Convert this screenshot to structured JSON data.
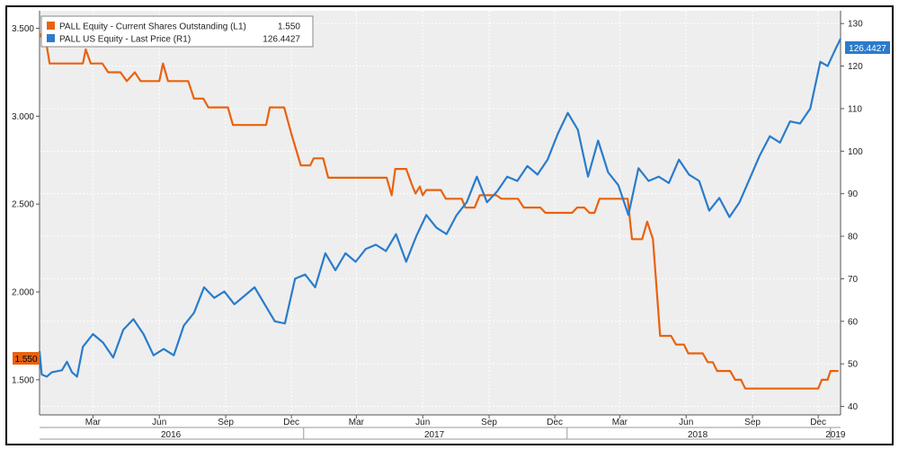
{
  "colors": {
    "orange": "#E8620F",
    "blue": "#2A7CCB",
    "plot_bg": "#EEEEEE",
    "grid": "#FFFFFF"
  },
  "legend": {
    "series1_label": "PALL Equity - Current Shares Outstanding (L1)",
    "series1_value": "1.550",
    "series2_label": "PALL US Equity - Last Price (R1)",
    "series2_value": "126.4427"
  },
  "badges": {
    "left": "1.550",
    "right": "126.4427"
  },
  "chart_data": {
    "type": "line",
    "grid": true,
    "legend_position": "top-left",
    "x_range": [
      "2016-01-01",
      "2019-01-15"
    ],
    "left_axis": {
      "range": [
        1.3,
        3.6
      ],
      "ticks": [
        "3.500",
        "3.000",
        "2.500",
        "2.000",
        "1.500"
      ],
      "tick_values": [
        3.5,
        3.0,
        2.5,
        2.0,
        1.5
      ]
    },
    "right_axis": {
      "range": [
        38,
        133
      ],
      "ticks": [
        "130",
        "120",
        "110",
        "100",
        "90",
        "80",
        "70",
        "60",
        "50",
        "40"
      ],
      "tick_values": [
        130,
        120,
        110,
        100,
        90,
        80,
        70,
        60,
        50,
        40
      ]
    },
    "x_ticks": [
      {
        "label": "Mar",
        "date": "2016-03-15"
      },
      {
        "label": "Jun",
        "date": "2016-06-15"
      },
      {
        "label": "Sep",
        "date": "2016-09-15"
      },
      {
        "label": "Dec",
        "date": "2016-12-15"
      },
      {
        "label": "Mar",
        "date": "2017-03-15"
      },
      {
        "label": "Jun",
        "date": "2017-06-15"
      },
      {
        "label": "Sep",
        "date": "2017-09-15"
      },
      {
        "label": "Dec",
        "date": "2017-12-15"
      },
      {
        "label": "Mar",
        "date": "2018-03-15"
      },
      {
        "label": "Jun",
        "date": "2018-06-15"
      },
      {
        "label": "Sep",
        "date": "2018-09-15"
      },
      {
        "label": "Dec",
        "date": "2018-12-15"
      }
    ],
    "year_labels": [
      {
        "label": "2016",
        "date": "2016-07-01"
      },
      {
        "label": "2017",
        "date": "2017-07-01"
      },
      {
        "label": "2018",
        "date": "2018-07-01"
      },
      {
        "label": "2019",
        "date": "2019-01-08"
      }
    ],
    "year_separators": [
      "2017-01-01",
      "2018-01-01",
      "2019-01-01"
    ],
    "series": [
      {
        "name": "PALL Equity - Current Shares Outstanding (L1)",
        "axis": "left",
        "color": "#E8620F",
        "points": [
          [
            "2016-01-01",
            3.47
          ],
          [
            "2016-01-11",
            3.4
          ],
          [
            "2016-01-15",
            3.3
          ],
          [
            "2016-03-01",
            3.3
          ],
          [
            "2016-03-05",
            3.38
          ],
          [
            "2016-03-12",
            3.3
          ],
          [
            "2016-03-28",
            3.3
          ],
          [
            "2016-04-05",
            3.25
          ],
          [
            "2016-04-22",
            3.25
          ],
          [
            "2016-05-01",
            3.2
          ],
          [
            "2016-05-12",
            3.25
          ],
          [
            "2016-05-20",
            3.2
          ],
          [
            "2016-06-15",
            3.2
          ],
          [
            "2016-06-20",
            3.3
          ],
          [
            "2016-06-27",
            3.2
          ],
          [
            "2016-07-25",
            3.2
          ],
          [
            "2016-08-02",
            3.1
          ],
          [
            "2016-08-15",
            3.1
          ],
          [
            "2016-08-22",
            3.05
          ],
          [
            "2016-09-18",
            3.05
          ],
          [
            "2016-09-25",
            2.95
          ],
          [
            "2016-11-10",
            2.95
          ],
          [
            "2016-11-15",
            3.05
          ],
          [
            "2016-12-05",
            3.05
          ],
          [
            "2016-12-15",
            2.9
          ],
          [
            "2016-12-28",
            2.72
          ],
          [
            "2017-01-10",
            2.72
          ],
          [
            "2017-01-15",
            2.76
          ],
          [
            "2017-01-28",
            2.76
          ],
          [
            "2017-02-04",
            2.65
          ],
          [
            "2017-04-26",
            2.65
          ],
          [
            "2017-05-03",
            2.55
          ],
          [
            "2017-05-08",
            2.7
          ],
          [
            "2017-05-23",
            2.7
          ],
          [
            "2017-06-01",
            2.6
          ],
          [
            "2017-06-05",
            2.56
          ],
          [
            "2017-06-11",
            2.6
          ],
          [
            "2017-06-15",
            2.55
          ],
          [
            "2017-06-20",
            2.58
          ],
          [
            "2017-07-10",
            2.58
          ],
          [
            "2017-07-17",
            2.53
          ],
          [
            "2017-08-08",
            2.53
          ],
          [
            "2017-08-13",
            2.48
          ],
          [
            "2017-08-26",
            2.48
          ],
          [
            "2017-09-02",
            2.55
          ],
          [
            "2017-09-25",
            2.55
          ],
          [
            "2017-10-02",
            2.53
          ],
          [
            "2017-10-25",
            2.53
          ],
          [
            "2017-11-02",
            2.48
          ],
          [
            "2017-11-25",
            2.48
          ],
          [
            "2017-12-02",
            2.45
          ],
          [
            "2018-01-08",
            2.45
          ],
          [
            "2018-01-15",
            2.48
          ],
          [
            "2018-01-25",
            2.48
          ],
          [
            "2018-02-01",
            2.45
          ],
          [
            "2018-02-08",
            2.45
          ],
          [
            "2018-02-15",
            2.53
          ],
          [
            "2018-03-26",
            2.53
          ],
          [
            "2018-04-01",
            2.3
          ],
          [
            "2018-04-15",
            2.3
          ],
          [
            "2018-04-22",
            2.4
          ],
          [
            "2018-04-30",
            2.3
          ],
          [
            "2018-05-10",
            1.75
          ],
          [
            "2018-05-25",
            1.75
          ],
          [
            "2018-06-01",
            1.7
          ],
          [
            "2018-06-12",
            1.7
          ],
          [
            "2018-06-18",
            1.65
          ],
          [
            "2018-07-08",
            1.65
          ],
          [
            "2018-07-15",
            1.6
          ],
          [
            "2018-07-22",
            1.6
          ],
          [
            "2018-07-28",
            1.55
          ],
          [
            "2018-08-15",
            1.55
          ],
          [
            "2018-08-22",
            1.5
          ],
          [
            "2018-08-30",
            1.5
          ],
          [
            "2018-09-05",
            1.45
          ],
          [
            "2018-12-15",
            1.45
          ],
          [
            "2018-12-20",
            1.5
          ],
          [
            "2018-12-28",
            1.5
          ],
          [
            "2019-01-01",
            1.55
          ],
          [
            "2019-01-12",
            1.55
          ]
        ]
      },
      {
        "name": "PALL US Equity - Last Price (R1)",
        "axis": "right",
        "color": "#2A7CCB",
        "points": [
          [
            "2016-01-01",
            53
          ],
          [
            "2016-01-04",
            47.5
          ],
          [
            "2016-01-11",
            47
          ],
          [
            "2016-01-18",
            48
          ],
          [
            "2016-02-01",
            48.5
          ],
          [
            "2016-02-08",
            50.5
          ],
          [
            "2016-02-15",
            48
          ],
          [
            "2016-02-22",
            47
          ],
          [
            "2016-03-01",
            54
          ],
          [
            "2016-03-15",
            57
          ],
          [
            "2016-03-29",
            55
          ],
          [
            "2016-04-12",
            51.5
          ],
          [
            "2016-04-26",
            58
          ],
          [
            "2016-05-10",
            60.5
          ],
          [
            "2016-05-24",
            57
          ],
          [
            "2016-06-07",
            52
          ],
          [
            "2016-06-21",
            53.5
          ],
          [
            "2016-07-05",
            52
          ],
          [
            "2016-07-19",
            59
          ],
          [
            "2016-08-02",
            62
          ],
          [
            "2016-08-16",
            68
          ],
          [
            "2016-08-30",
            65.5
          ],
          [
            "2016-09-13",
            67
          ],
          [
            "2016-09-27",
            64
          ],
          [
            "2016-10-11",
            66
          ],
          [
            "2016-10-25",
            68
          ],
          [
            "2016-11-08",
            64
          ],
          [
            "2016-11-22",
            60
          ],
          [
            "2016-12-06",
            59.5
          ],
          [
            "2016-12-20",
            70
          ],
          [
            "2017-01-03",
            71
          ],
          [
            "2017-01-17",
            68
          ],
          [
            "2017-01-31",
            76
          ],
          [
            "2017-02-14",
            72
          ],
          [
            "2017-02-28",
            76
          ],
          [
            "2017-03-14",
            74
          ],
          [
            "2017-03-28",
            77
          ],
          [
            "2017-04-11",
            78
          ],
          [
            "2017-04-25",
            76.5
          ],
          [
            "2017-05-09",
            80.5
          ],
          [
            "2017-05-23",
            74
          ],
          [
            "2017-06-06",
            80
          ],
          [
            "2017-06-20",
            85
          ],
          [
            "2017-07-04",
            82
          ],
          [
            "2017-07-18",
            80.5
          ],
          [
            "2017-08-01",
            85
          ],
          [
            "2017-08-15",
            88
          ],
          [
            "2017-08-29",
            94
          ],
          [
            "2017-09-12",
            88
          ],
          [
            "2017-09-26",
            90.5
          ],
          [
            "2017-10-10",
            94
          ],
          [
            "2017-10-24",
            93
          ],
          [
            "2017-11-07",
            96.5
          ],
          [
            "2017-11-21",
            94.5
          ],
          [
            "2017-12-05",
            98
          ],
          [
            "2017-12-19",
            104
          ],
          [
            "2018-01-02",
            109
          ],
          [
            "2018-01-16",
            105
          ],
          [
            "2018-01-30",
            94
          ],
          [
            "2018-02-13",
            102.5
          ],
          [
            "2018-02-27",
            95
          ],
          [
            "2018-03-13",
            92
          ],
          [
            "2018-03-27",
            85
          ],
          [
            "2018-04-10",
            96
          ],
          [
            "2018-04-24",
            93
          ],
          [
            "2018-05-08",
            94
          ],
          [
            "2018-05-22",
            92.5
          ],
          [
            "2018-06-05",
            98
          ],
          [
            "2018-06-19",
            94.5
          ],
          [
            "2018-07-03",
            93
          ],
          [
            "2018-07-17",
            86
          ],
          [
            "2018-07-31",
            89
          ],
          [
            "2018-08-14",
            84.5
          ],
          [
            "2018-08-28",
            88
          ],
          [
            "2018-09-11",
            93.5
          ],
          [
            "2018-09-25",
            99
          ],
          [
            "2018-10-09",
            103.5
          ],
          [
            "2018-10-23",
            102
          ],
          [
            "2018-11-06",
            107
          ],
          [
            "2018-11-20",
            106.5
          ],
          [
            "2018-12-04",
            110
          ],
          [
            "2018-12-18",
            121
          ],
          [
            "2018-12-28",
            120
          ],
          [
            "2019-01-08",
            124
          ],
          [
            "2019-01-15",
            126.4427
          ]
        ]
      }
    ]
  }
}
